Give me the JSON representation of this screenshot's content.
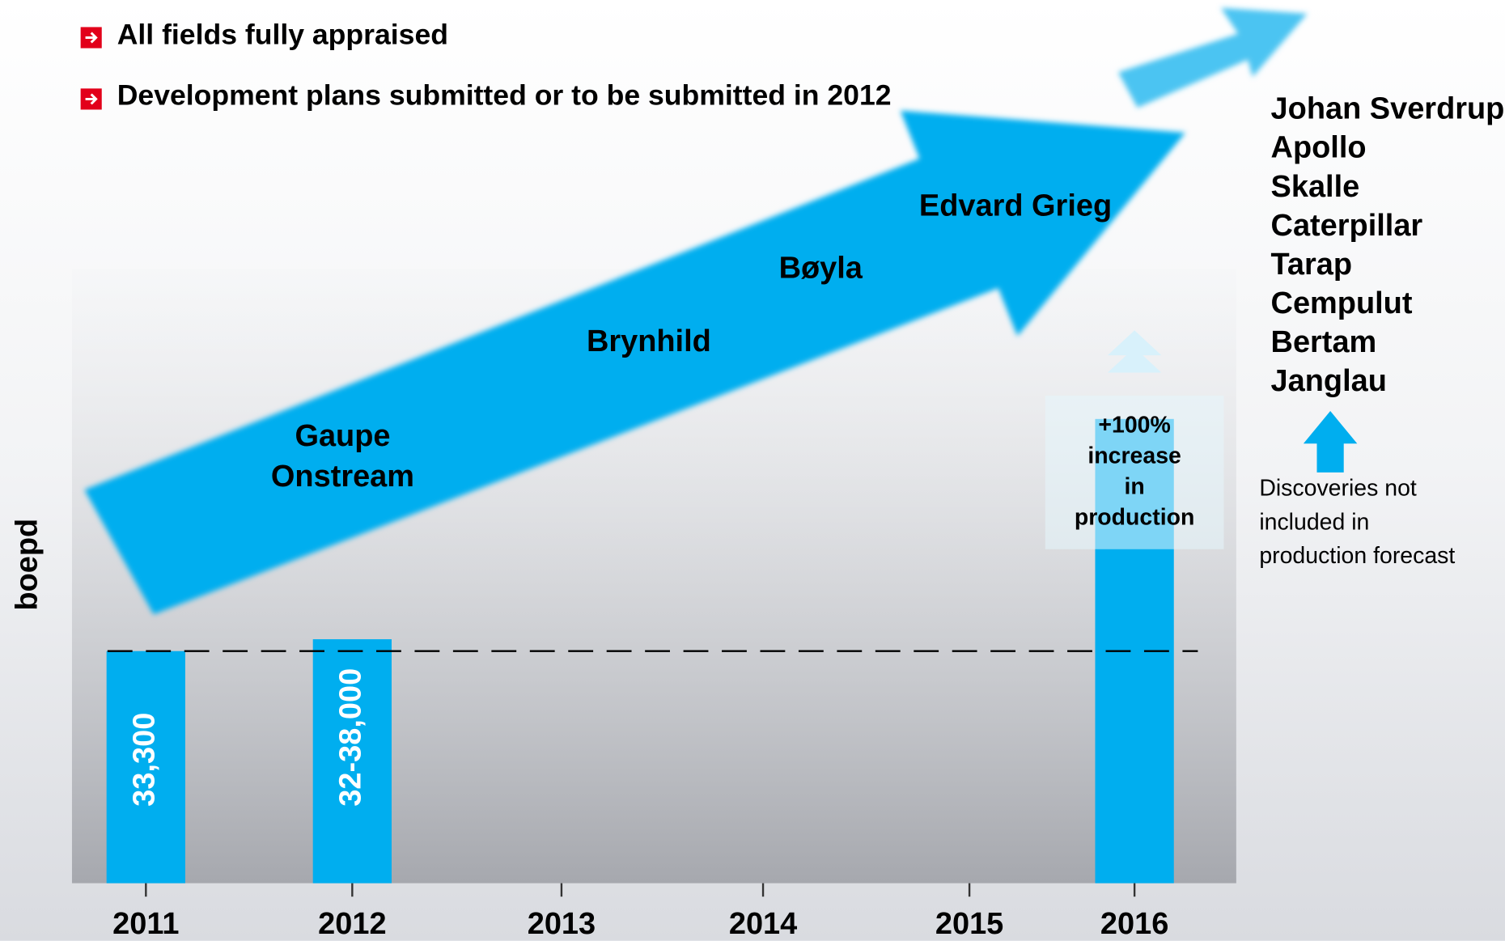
{
  "bullets": [
    "All fields fully appraised",
    "Development plans submitted or to be submitted in 2012"
  ],
  "chart_data": {
    "type": "bar",
    "categories": [
      "2011",
      "2012",
      "2013",
      "2014",
      "2015",
      "2016"
    ],
    "values": [
      33300,
      35000,
      null,
      null,
      null,
      66600
    ],
    "value_labels": [
      "33,300",
      "32-38,000",
      null,
      null,
      null,
      null
    ],
    "color": "#00aeef",
    "ylim": [
      0,
      80000
    ],
    "ylabel": "boepd",
    "arrow_labels": [
      "Gaupe",
      "Onstream",
      "Brynhild",
      "Bøyla",
      "Edvard Grieg"
    ],
    "increase_annotation": [
      "+100%",
      "increase",
      "in",
      "production"
    ],
    "discoveries": [
      "Johan Sverdrup",
      "Apollo",
      "Skalle",
      "Caterpillar",
      "Tarap",
      "Cempulut",
      "Bertam",
      "Janglau"
    ],
    "discoveries_note": [
      "Discoveries not",
      "included in",
      "production forecast"
    ]
  }
}
